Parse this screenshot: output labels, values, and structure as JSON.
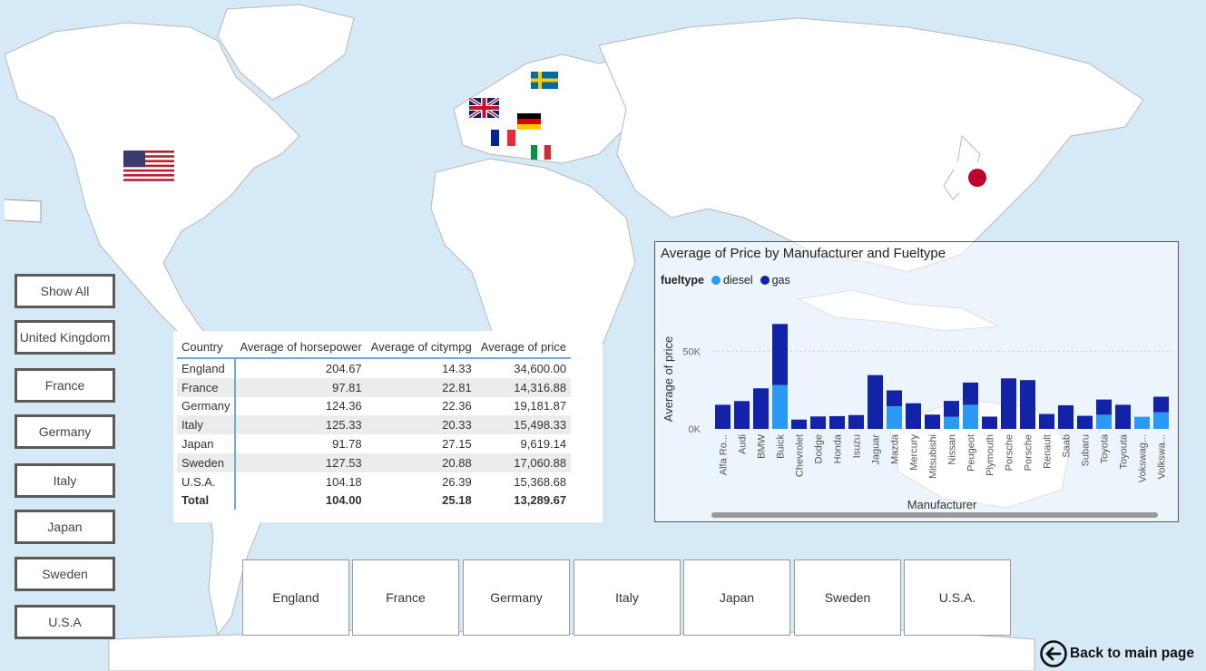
{
  "filters_left": [
    "Show All",
    "United Kingdom",
    "France",
    "Germany",
    "Italy",
    "Japan",
    "Sweden",
    "U.S.A"
  ],
  "filters_bottom": [
    "England",
    "France",
    "Germany",
    "Italy",
    "Japan",
    "Sweden",
    "U.S.A."
  ],
  "table": {
    "headers": [
      "Country",
      "Average of horsepower",
      "Average of citympg",
      "Average of price"
    ],
    "rows": [
      [
        "England",
        "204.67",
        "14.33",
        "34,600.00"
      ],
      [
        "France",
        "97.81",
        "22.81",
        "14,316.88"
      ],
      [
        "Germany",
        "124.36",
        "22.36",
        "19,181.87"
      ],
      [
        "Italy",
        "125.33",
        "20.33",
        "15,498.33"
      ],
      [
        "Japan",
        "91.78",
        "27.15",
        "9,619.14"
      ],
      [
        "Sweden",
        "127.53",
        "20.88",
        "17,060.88"
      ],
      [
        "U.S.A.",
        "104.18",
        "26.39",
        "15,368.68"
      ]
    ],
    "total": [
      "Total",
      "104.00",
      "25.18",
      "13,289.67"
    ]
  },
  "chart_data": {
    "type": "bar",
    "title": "Average of Price by Manufacturer and Fueltype",
    "legend_title": "fueltype",
    "xlabel": "Manufacturer",
    "ylabel": "Average of price",
    "yticks": [
      0,
      50000
    ],
    "ytick_labels": [
      "0K",
      "50K"
    ],
    "ylim": [
      0,
      70000
    ],
    "grid": true,
    "legend_position": "top-left",
    "categories": [
      "Alfa Ro...",
      "Audi",
      "BMW",
      "Buick",
      "Chevrolet",
      "Dodge",
      "Honda",
      "Isuzu",
      "Jaguar",
      "Mazda",
      "Mercury",
      "Mitsubishi",
      "Nissan",
      "Peugeot",
      "Plymouth",
      "Porsche",
      "Porsche",
      "Renault",
      "Saab",
      "Subaru",
      "Toyota",
      "Toyouta",
      "Vokswag...",
      "Volkswa..."
    ],
    "series": [
      {
        "name": "diesel",
        "color": "#2b9af3",
        "values": [
          0,
          0,
          0,
          28200,
          0,
          0,
          0,
          0,
          0,
          14600,
          0,
          0,
          7800,
          15500,
          0,
          0,
          0,
          0,
          0,
          0,
          9100,
          0,
          7800,
          10700
        ]
      },
      {
        "name": "gas",
        "color": "#1223a8",
        "values": [
          15500,
          17900,
          26100,
          39300,
          6000,
          8000,
          8200,
          8900,
          34600,
          10200,
          16500,
          9200,
          10200,
          14300,
          7900,
          32500,
          31400,
          9600,
          15200,
          8400,
          9800,
          15500,
          0,
          10000
        ]
      }
    ]
  },
  "back_label": "Back to main page"
}
